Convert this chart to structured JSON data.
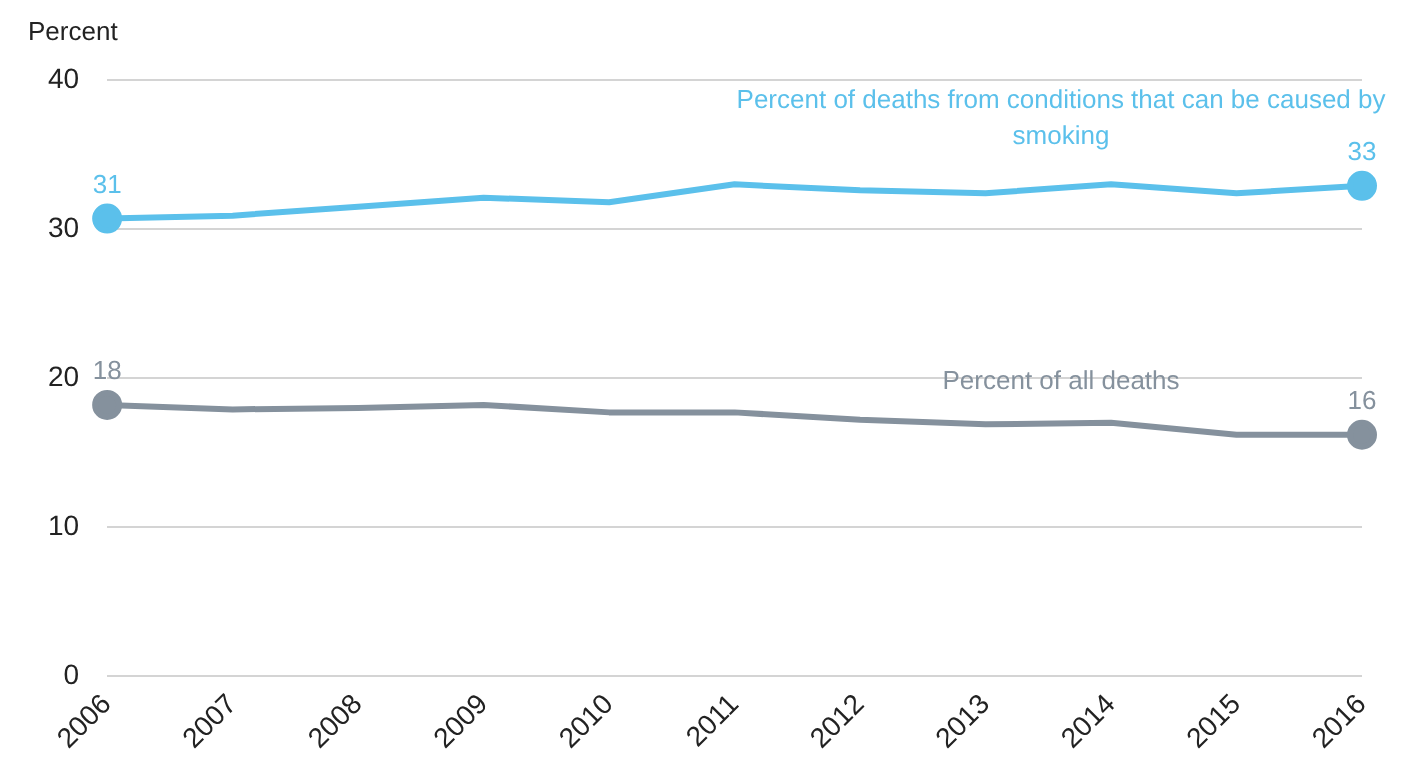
{
  "chart_data": {
    "type": "line",
    "ylabel": "Percent",
    "categories": [
      "2006",
      "2007",
      "2008",
      "2009",
      "2010",
      "2011",
      "2012",
      "2013",
      "2014",
      "2015",
      "2016"
    ],
    "series": [
      {
        "name": "Percent of deaths from conditions that can be caused by smoking",
        "color": "#5bc0eb",
        "values": [
          30.7,
          30.9,
          31.5,
          32.1,
          31.8,
          33.0,
          32.6,
          32.4,
          33.0,
          32.4,
          32.9
        ],
        "value_labels": [
          "31",
          null,
          null,
          null,
          null,
          null,
          null,
          null,
          null,
          null,
          "33"
        ]
      },
      {
        "name": "Percent of all deaths",
        "color": "#85919d",
        "values": [
          18.2,
          17.9,
          18.0,
          18.2,
          17.7,
          17.7,
          17.2,
          16.9,
          17.0,
          16.2,
          16.2
        ],
        "value_labels": [
          "18",
          null,
          null,
          null,
          null,
          null,
          null,
          null,
          null,
          null,
          "16"
        ]
      }
    ],
    "ylim": [
      0,
      40
    ],
    "yticks": [
      0,
      10,
      20,
      30,
      40
    ],
    "grid": "y",
    "legend": false,
    "line_style": "solid"
  }
}
